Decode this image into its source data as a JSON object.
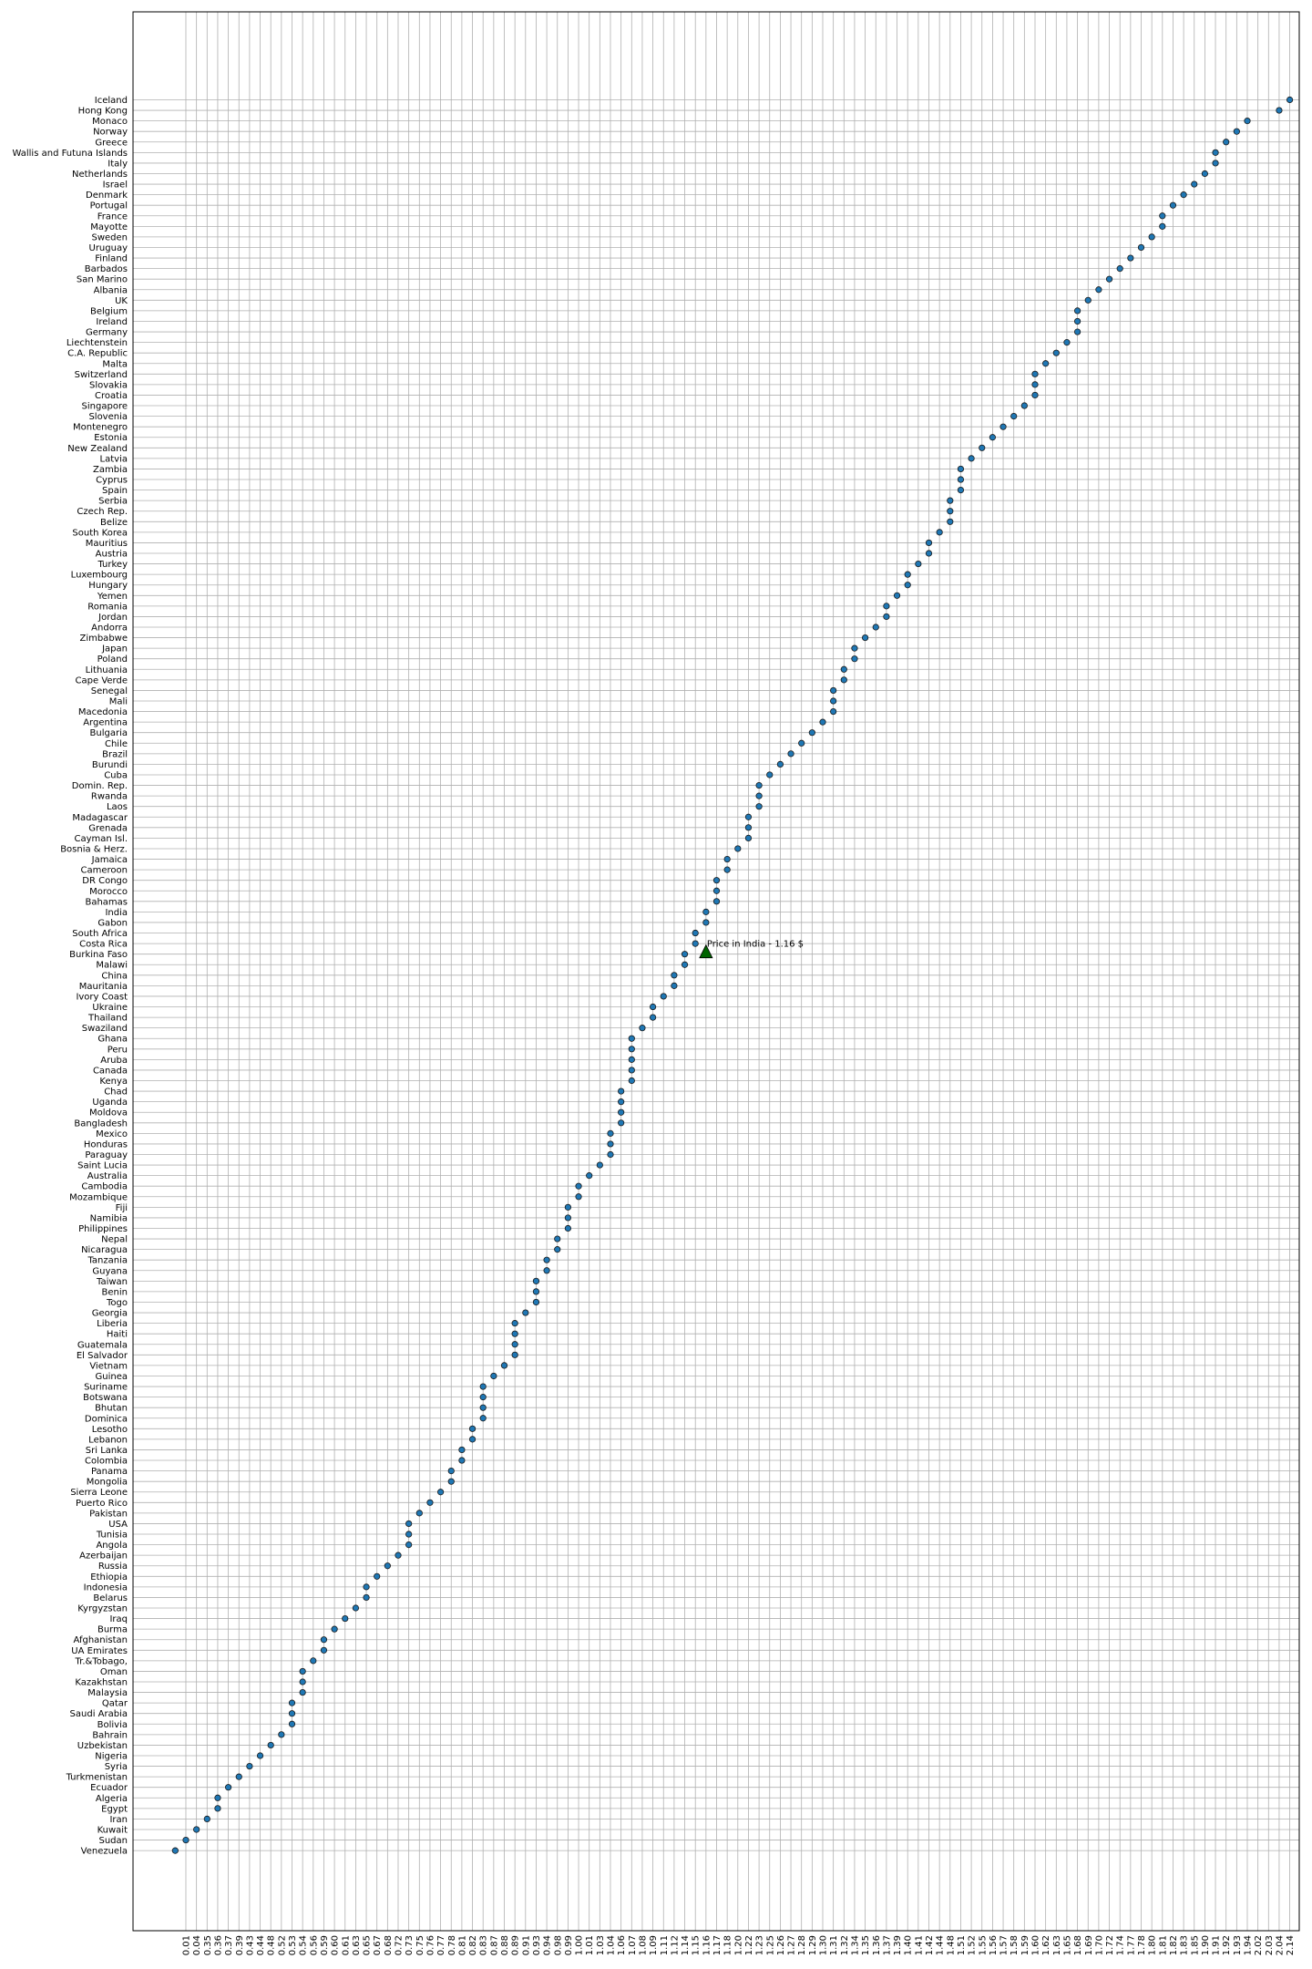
{
  "chart_data": {
    "type": "scatter",
    "grid": true,
    "marker_color": "#1f77b4",
    "highlight_color": "#006400",
    "countries": [
      "Iceland",
      "Hong Kong",
      "Monaco",
      "Norway",
      "Greece",
      "Wallis and Futuna Islands",
      "Italy",
      "Netherlands",
      "Israel",
      "Denmark",
      "Portugal",
      "France",
      "Mayotte",
      "Sweden",
      "Uruguay",
      "Finland",
      "Barbados",
      "San Marino",
      "Albania",
      "UK",
      "Belgium",
      "Ireland",
      "Germany",
      "Liechtenstein",
      "C.A. Republic",
      "Malta",
      "Switzerland",
      "Slovakia",
      "Croatia",
      "Singapore",
      "Slovenia",
      "Montenegro",
      "Estonia",
      "New Zealand",
      "Latvia",
      "Zambia",
      "Cyprus",
      "Spain",
      "Serbia",
      "Czech Rep.",
      "Belize",
      "South Korea",
      "Mauritius",
      "Austria",
      "Turkey",
      "Luxembourg",
      "Hungary",
      "Yemen",
      "Romania",
      "Jordan",
      "Andorra",
      "Zimbabwe",
      "Japan",
      "Poland",
      "Lithuania",
      "Cape Verde",
      "Senegal",
      "Mali",
      "Macedonia",
      "Argentina",
      "Bulgaria",
      "Chile",
      "Brazil",
      "Burundi",
      "Cuba",
      "Domin. Rep.",
      "Rwanda",
      "Laos",
      "Madagascar",
      "Grenada",
      "Cayman Isl.",
      "Bosnia & Herz.",
      "Jamaica",
      "Cameroon",
      "DR Congo",
      "Morocco",
      "Bahamas",
      "India",
      "Gabon",
      "South Africa",
      "Costa Rica",
      "Burkina Faso",
      "Malawi",
      "China",
      "Mauritania",
      "Ivory Coast",
      "Ukraine",
      "Thailand",
      "Swaziland",
      "Ghana",
      "Peru",
      "Aruba",
      "Canada",
      "Kenya",
      "Chad",
      "Uganda",
      "Moldova",
      "Bangladesh",
      "Mexico",
      "Honduras",
      "Paraguay",
      "Saint Lucia",
      "Australia",
      "Cambodia",
      "Mozambique",
      "Fiji",
      "Namibia",
      "Philippines",
      "Nepal",
      "Nicaragua",
      "Tanzania",
      "Guyana",
      "Taiwan",
      "Benin",
      "Togo",
      "Georgia",
      "Liberia",
      "Haiti",
      "Guatemala",
      "El Salvador",
      "Vietnam",
      "Guinea",
      "Suriname",
      "Botswana",
      "Bhutan",
      "Dominica",
      "Lesotho",
      "Lebanon",
      "Sri Lanka",
      "Colombia",
      "Panama",
      "Mongolia",
      "Sierra Leone",
      "Puerto Rico",
      "Pakistan",
      "USA",
      "Tunisia",
      "Angola",
      "Azerbaijan",
      "Russia",
      "Ethiopia",
      "Indonesia",
      "Belarus",
      "Kyrgyzstan",
      "Iraq",
      "Burma",
      "Afghanistan",
      "UA Emirates",
      "Tr.&Tobago,",
      "Oman",
      "Kazakhstan",
      "Malaysia",
      "Qatar",
      "Saudi Arabia",
      "Bolivia",
      "Bahrain",
      "Uzbekistan",
      "Nigeria",
      "Syria",
      "Turkmenistan",
      "Ecuador",
      "Algeria",
      "Egypt",
      "Iran",
      "Kuwait",
      "Sudan",
      "Venezuela"
    ],
    "x_ticks": [
      "0.01",
      "0.04",
      "0.35",
      "0.36",
      "0.37",
      "0.39",
      "0.43",
      "0.44",
      "0.48",
      "0.52",
      "0.53",
      "0.54",
      "0.56",
      "0.59",
      "0.60",
      "0.61",
      "0.63",
      "0.65",
      "0.67",
      "0.68",
      "0.72",
      "0.73",
      "0.75",
      "0.76",
      "0.77",
      "0.78",
      "0.81",
      "0.82",
      "0.83",
      "0.87",
      "0.88",
      "0.89",
      "0.91",
      "0.93",
      "0.94",
      "0.98",
      "0.99",
      "1.00",
      "1.01",
      "1.03",
      "1.04",
      "1.06",
      "1.07",
      "1.08",
      "1.09",
      "1.11",
      "1.12",
      "1.14",
      "1.15",
      "1.16",
      "1.17",
      "1.18",
      "1.20",
      "1.22",
      "1.23",
      "1.25",
      "1.26",
      "1.27",
      "1.28",
      "1.29",
      "1.30",
      "1.31",
      "1.32",
      "1.34",
      "1.35",
      "1.36",
      "1.37",
      "1.39",
      "1.40",
      "1.41",
      "1.42",
      "1.44",
      "1.48",
      "1.51",
      "1.52",
      "1.55",
      "1.56",
      "1.57",
      "1.58",
      "1.59",
      "1.60",
      "1.62",
      "1.63",
      "1.65",
      "1.68",
      "1.69",
      "1.70",
      "1.72",
      "1.74",
      "1.77",
      "1.78",
      "1.80",
      "1.81",
      "1.82",
      "1.83",
      "1.85",
      "1.90",
      "1.91",
      "1.92",
      "1.93",
      "1.94",
      "2.02",
      "2.03",
      "2.04",
      "2.14"
    ],
    "values": [
      "2.14",
      "2.04",
      "1.94",
      "1.93",
      "1.92",
      "1.91",
      "1.91",
      "1.90",
      "1.85",
      "1.83",
      "1.82",
      "1.81",
      "1.81",
      "1.80",
      "1.78",
      "1.77",
      "1.74",
      "1.72",
      "1.70",
      "1.69",
      "1.68",
      "1.68",
      "1.68",
      "1.65",
      "1.63",
      "1.62",
      "1.60",
      "1.60",
      "1.60",
      "1.59",
      "1.58",
      "1.57",
      "1.56",
      "1.55",
      "1.52",
      "1.51",
      "1.51",
      "1.51",
      "1.48",
      "1.48",
      "1.48",
      "1.44",
      "1.42",
      "1.42",
      "1.41",
      "1.40",
      "1.40",
      "1.39",
      "1.37",
      "1.37",
      "1.36",
      "1.35",
      "1.34",
      "1.34",
      "1.32",
      "1.32",
      "1.31",
      "1.31",
      "1.31",
      "1.30",
      "1.29",
      "1.28",
      "1.27",
      "1.26",
      "1.25",
      "1.23",
      "1.23",
      "1.23",
      "1.22",
      "1.22",
      "1.22",
      "1.20",
      "1.18",
      "1.18",
      "1.17",
      "1.17",
      "1.17",
      "1.16",
      "1.16",
      "1.15",
      "1.15",
      "1.14",
      "1.14",
      "1.12",
      "1.12",
      "1.11",
      "1.09",
      "1.09",
      "1.08",
      "1.07",
      "1.07",
      "1.07",
      "1.07",
      "1.07",
      "1.06",
      "1.06",
      "1.06",
      "1.06",
      "1.04",
      "1.04",
      "1.04",
      "1.03",
      "1.01",
      "1.00",
      "1.00",
      "0.99",
      "0.99",
      "0.99",
      "0.98",
      "0.98",
      "0.94",
      "0.94",
      "0.93",
      "0.93",
      "0.93",
      "0.91",
      "0.89",
      "0.89",
      "0.89",
      "0.89",
      "0.88",
      "0.87",
      "0.83",
      "0.83",
      "0.83",
      "0.83",
      "0.82",
      "0.82",
      "0.81",
      "0.81",
      "0.78",
      "0.78",
      "0.77",
      "0.76",
      "0.75",
      "0.73",
      "0.73",
      "0.73",
      "0.72",
      "0.68",
      "0.67",
      "0.65",
      "0.65",
      "0.63",
      "0.61",
      "0.60",
      "0.59",
      "0.59",
      "0.56",
      "0.54",
      "0.54",
      "0.54",
      "0.53",
      "0.53",
      "0.53",
      "0.52",
      "0.48",
      "0.44",
      "0.43",
      "0.39",
      "0.37",
      "0.36",
      "0.36",
      "0.35",
      "0.04",
      "0.01",
      "0.00"
    ],
    "annotation": {
      "text": "Price in India - 1.16 $",
      "x": "1.16",
      "y_index": 81
    }
  }
}
